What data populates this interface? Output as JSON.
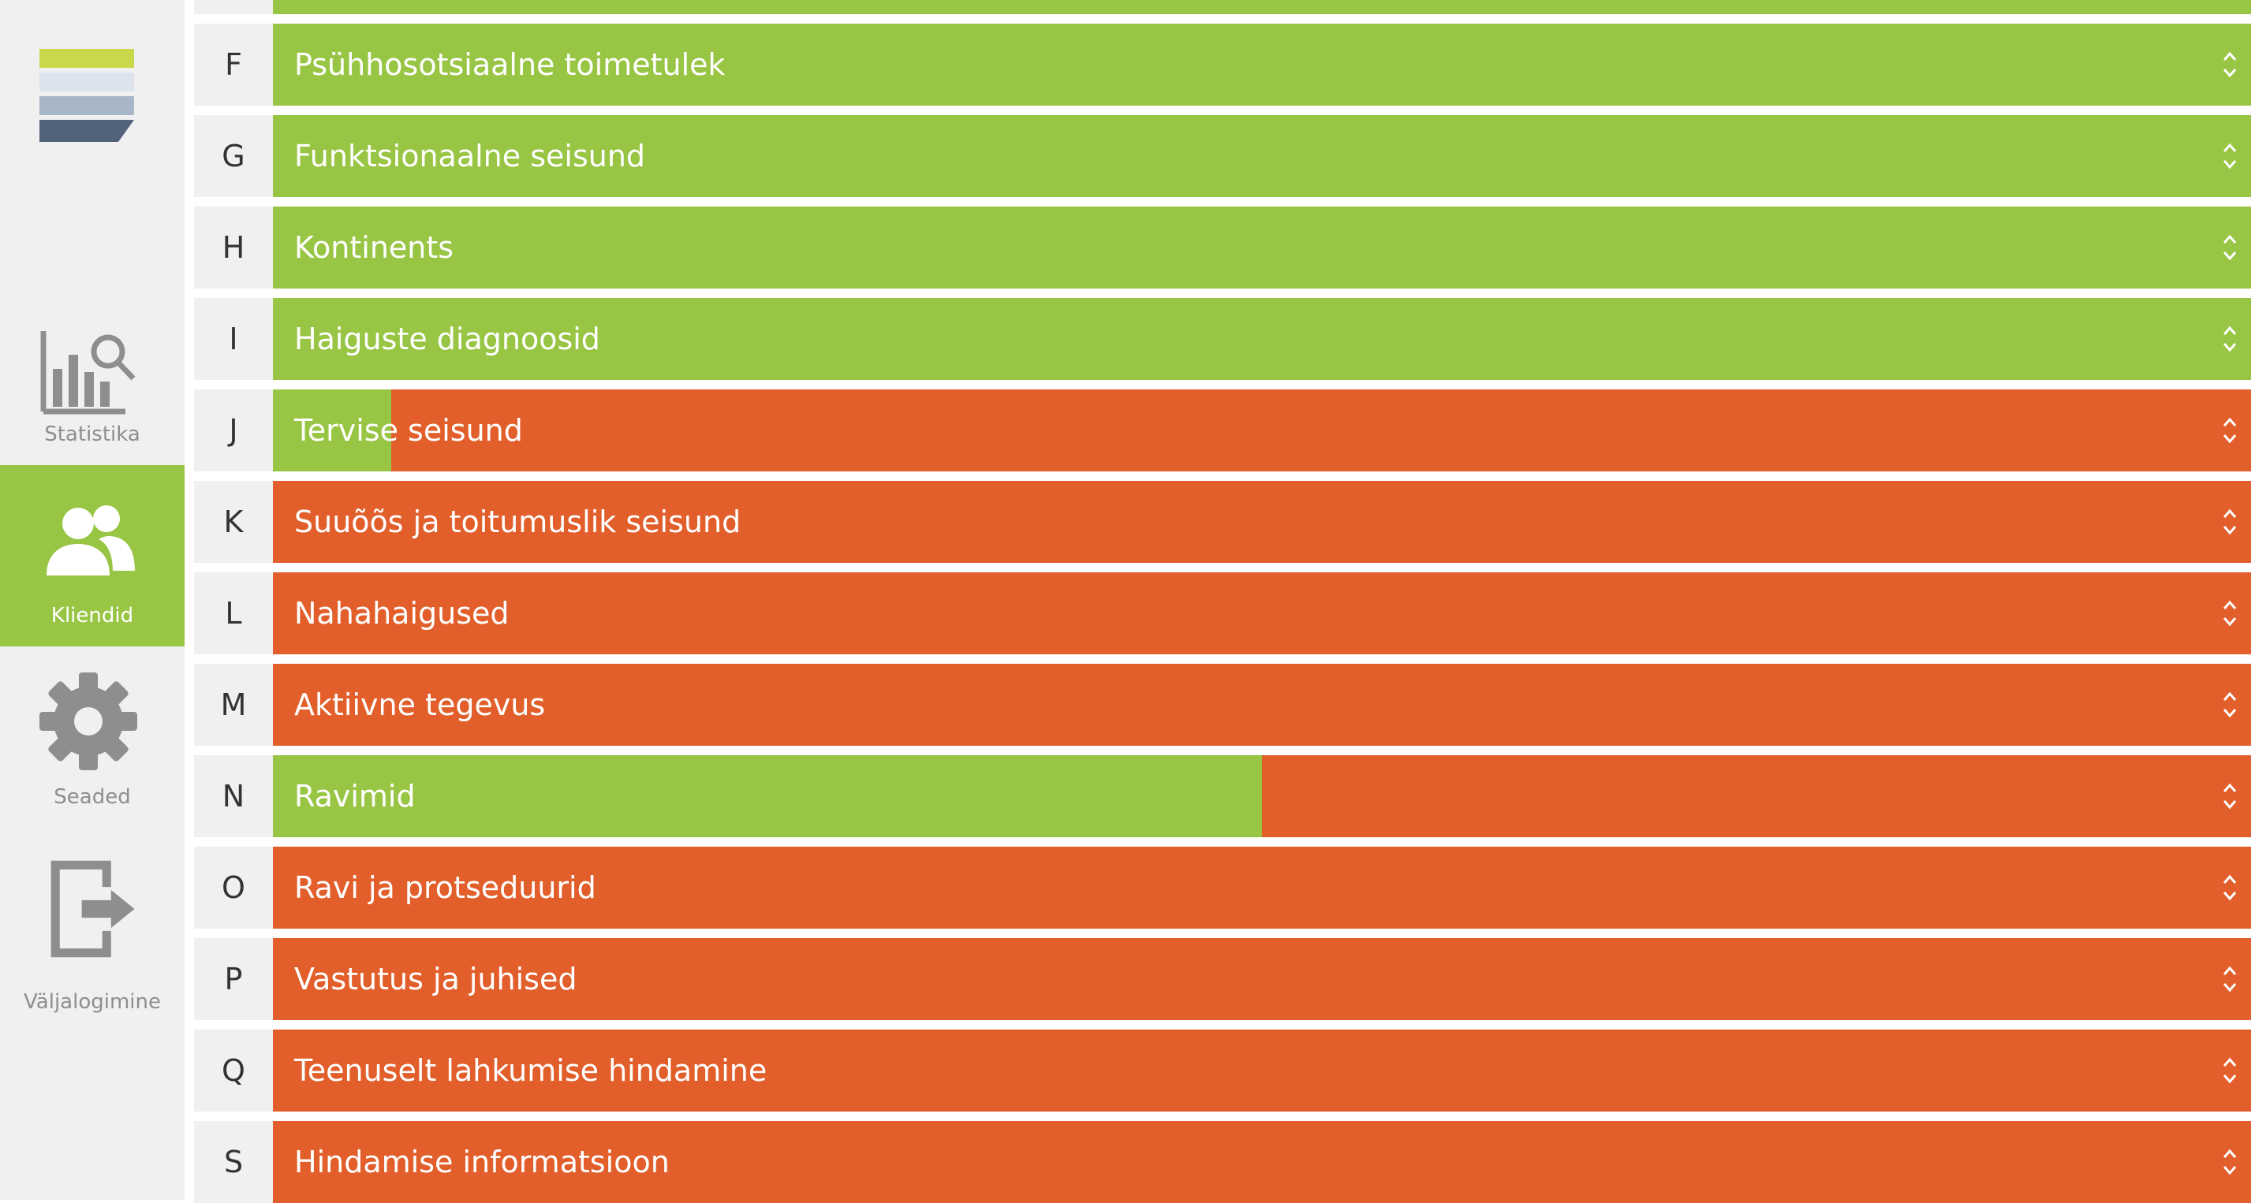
{
  "colors": {
    "green": "#98c544",
    "orange": "#e25f2b",
    "sidebar_bg": "#f0f0f0",
    "sidebar_text": "#8e8e8e",
    "logo_stripes": [
      "#c9d84a",
      "#dce3ec",
      "#a7b7c8",
      "#52627a"
    ]
  },
  "sidebar": {
    "logo_icon": "layers-logo-icon",
    "items": [
      {
        "label": "Statistika",
        "icon": "chart-search-icon",
        "active": false
      },
      {
        "label": "Kliendid",
        "icon": "users-icon",
        "active": true
      },
      {
        "label": "Seaded",
        "icon": "gear-icon",
        "active": false
      },
      {
        "label": "Väljalogimine",
        "icon": "logout-icon",
        "active": false
      }
    ]
  },
  "sections": [
    {
      "letter": "F",
      "label": "Psühhosotsiaalne toimetulek",
      "progress": 1.0
    },
    {
      "letter": "G",
      "label": "Funktsionaalne seisund",
      "progress": 1.0
    },
    {
      "letter": "H",
      "label": "Kontinents",
      "progress": 1.0
    },
    {
      "letter": "I",
      "label": "Haiguste diagnoosid",
      "progress": 1.0
    },
    {
      "letter": "J",
      "label": "Tervise seisund",
      "progress": 0.06
    },
    {
      "letter": "K",
      "label": "Suuõõs ja toitumuslik seisund",
      "progress": 0.0
    },
    {
      "letter": "L",
      "label": "Nahahaigused",
      "progress": 0.0
    },
    {
      "letter": "M",
      "label": "Aktiivne tegevus",
      "progress": 0.0
    },
    {
      "letter": "N",
      "label": "Ravimid",
      "progress": 0.5
    },
    {
      "letter": "O",
      "label": "Ravi ja protseduurid",
      "progress": 0.0
    },
    {
      "letter": "P",
      "label": "Vastutus ja juhised",
      "progress": 0.0
    },
    {
      "letter": "Q",
      "label": "Teenuselt lahkumise hindamine",
      "progress": 0.0
    },
    {
      "letter": "S",
      "label": "Hindamise informatsioon",
      "progress": 0.0
    }
  ],
  "row_chevron_icon": "expand-chevron-icon"
}
